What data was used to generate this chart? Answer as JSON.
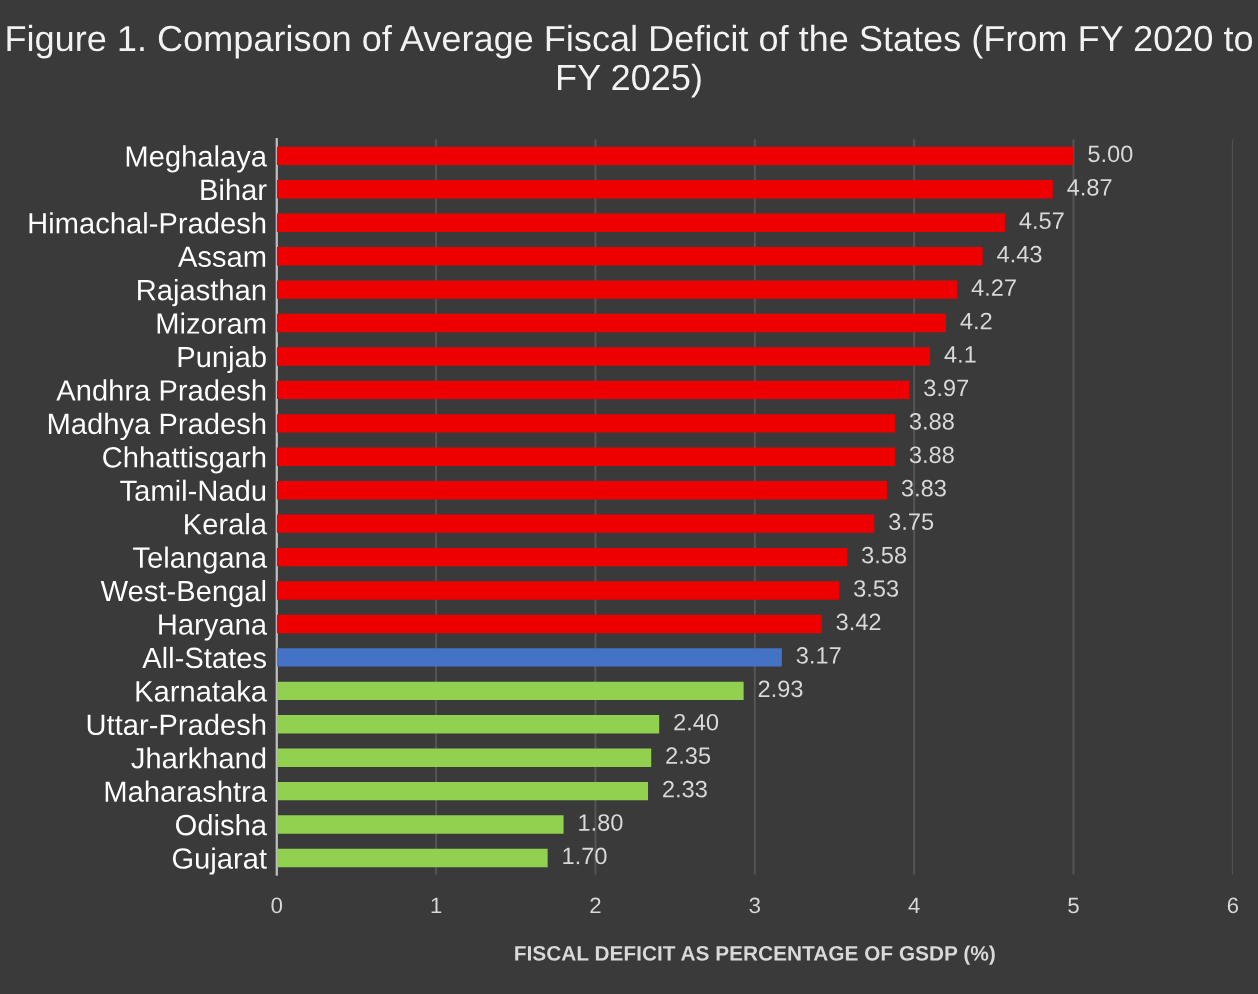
{
  "chart_data": {
    "type": "bar",
    "orientation": "horizontal",
    "title": "Figure 1. Comparison of Average Fiscal Deficit of the States (From FY 2020 to FY 2025)",
    "xlabel": "FISCAL DEFICIT AS PERCENTAGE OF GSDP (%)",
    "categories": [
      "Meghalaya",
      "Bihar",
      "Himachal-Pradesh",
      "Assam",
      "Rajasthan",
      "Mizoram",
      "Punjab",
      "Andhra Pradesh",
      "Madhya Pradesh",
      "Chhattisgarh",
      "Tamil-Nadu",
      "Kerala",
      "Telangana",
      "West-Bengal",
      "Haryana",
      "All-States",
      "Karnataka",
      "Uttar-Pradesh",
      "Jharkhand",
      "Maharashtra",
      "Odisha",
      "Gujarat"
    ],
    "values": [
      5.0,
      4.87,
      4.57,
      4.43,
      4.27,
      4.2,
      4.1,
      3.97,
      3.88,
      3.88,
      3.83,
      3.75,
      3.58,
      3.53,
      3.42,
      3.17,
      2.93,
      2.4,
      2.35,
      2.33,
      1.8,
      1.7
    ],
    "value_labels": [
      "5.00",
      "4.87",
      "4.57",
      "4.43",
      "4.27",
      "4.2",
      "4.1",
      "3.97",
      "3.88",
      "3.88",
      "3.83",
      "3.75",
      "3.58",
      "3.53",
      "3.42",
      "3.17",
      "2.93",
      "2.40",
      "2.35",
      "2.33",
      "1.80",
      "1.70"
    ],
    "colors": [
      "#ee0000",
      "#ee0000",
      "#ee0000",
      "#ee0000",
      "#ee0000",
      "#ee0000",
      "#ee0000",
      "#ee0000",
      "#ee0000",
      "#ee0000",
      "#ee0000",
      "#ee0000",
      "#ee0000",
      "#ee0000",
      "#ee0000",
      "#4472c4",
      "#92d050",
      "#92d050",
      "#92d050",
      "#92d050",
      "#92d050",
      "#92d050"
    ],
    "xlim": [
      0,
      6
    ],
    "xticks": [
      0,
      1,
      2,
      3,
      4,
      5,
      6
    ],
    "grid": "x",
    "legend": false
  }
}
